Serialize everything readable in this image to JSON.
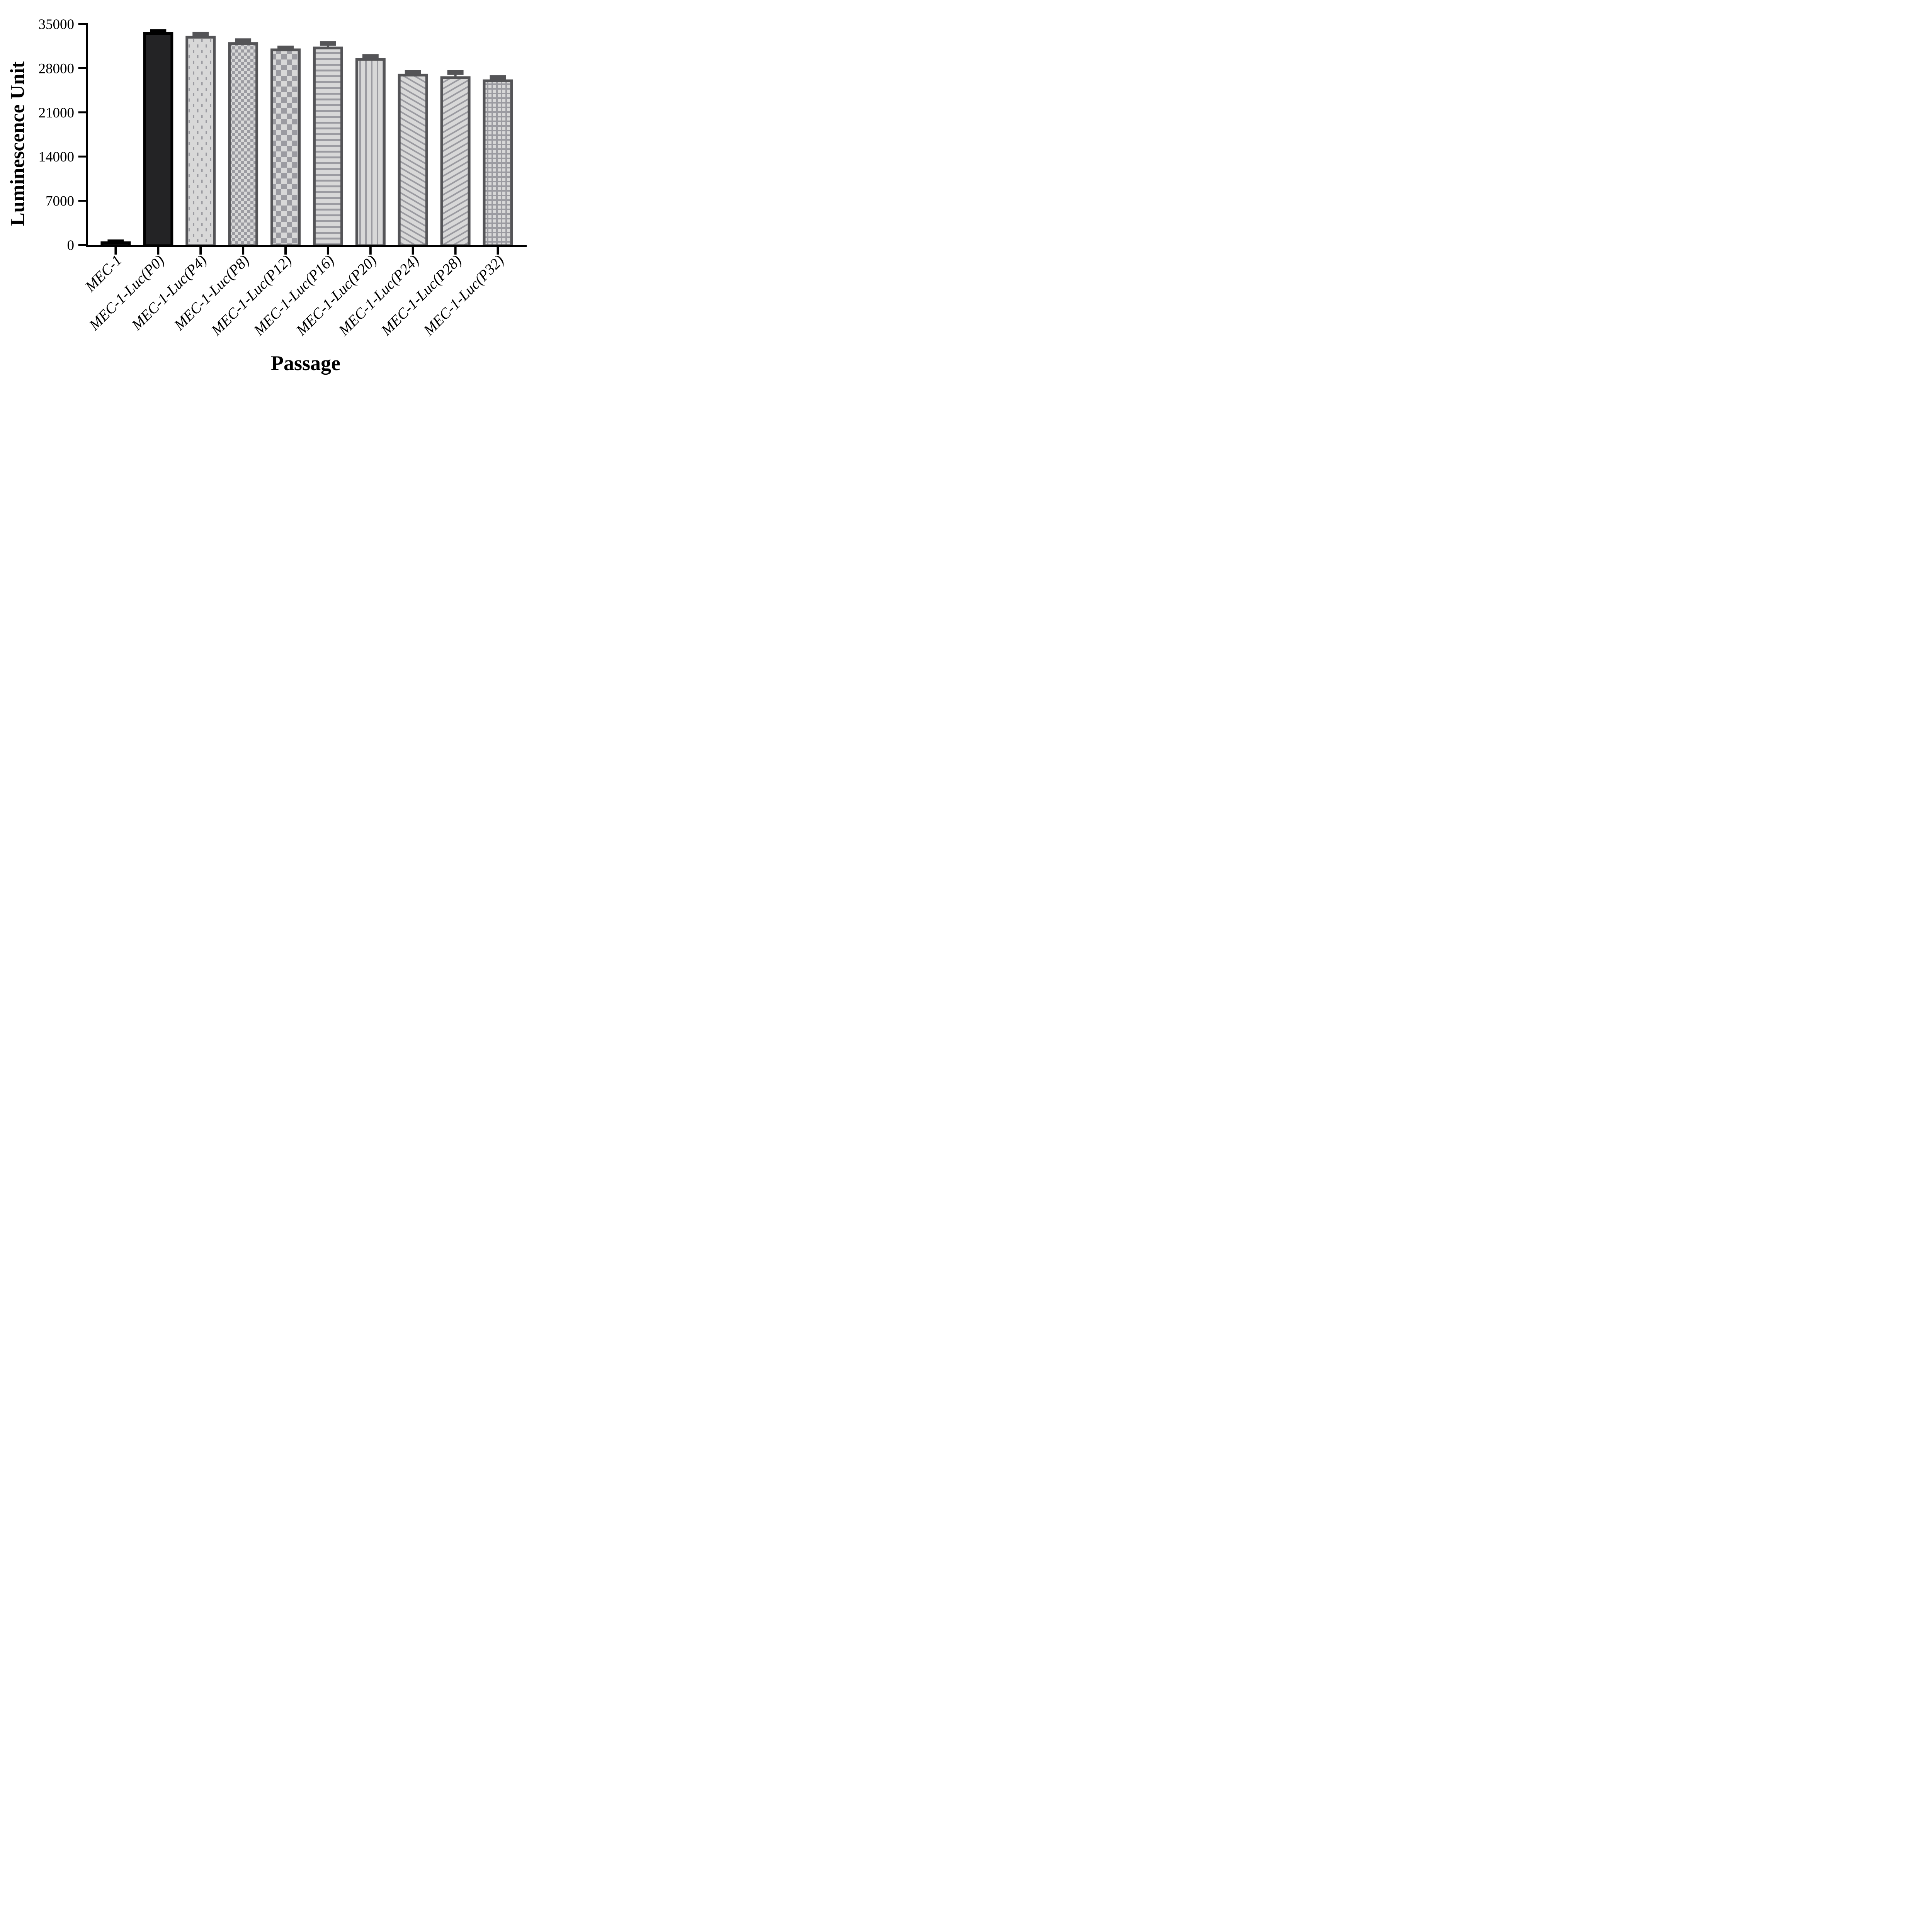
{
  "figure": {
    "background": "#ffffff"
  },
  "chart_data": {
    "type": "bar",
    "title": "",
    "xlabel": "Passage",
    "ylabel": "Luminescence Unit",
    "ylim": [
      0,
      35000
    ],
    "ytick_interval": 7000,
    "yticks": [
      0,
      7000,
      14000,
      21000,
      28000,
      35000
    ],
    "grid": false,
    "legend": "none",
    "error_bars": "sd, upper only, capped",
    "categories": [
      "MEC-1",
      "MEC-1-Luc(P0)",
      "MEC-1-Luc(P4)",
      "MEC-1-Luc(P8)",
      "MEC-1-Luc(P12)",
      "MEC-1-Luc(P16)",
      "MEC-1-Luc(P20)",
      "MEC-1-Luc(P24)",
      "MEC-1-Luc(P28)",
      "MEC-1-Luc(P32)"
    ],
    "series": [
      {
        "name": "Luminescence Unit",
        "values": [
          350,
          33500,
          32900,
          31900,
          30900,
          31200,
          29400,
          26900,
          26500,
          26000
        ],
        "errors": [
          150,
          300,
          500,
          450,
          300,
          700,
          450,
          450,
          800,
          500
        ]
      }
    ],
    "bar_patterns": [
      "solid-black",
      "solid-black",
      "dots",
      "checker-small",
      "checker-large",
      "horizontal-lines",
      "vertical-lines",
      "diagonal-up",
      "diagonal-down",
      "grid"
    ]
  },
  "colors": {
    "ink": "#000000",
    "solid_bar_fill": "#232325",
    "pattern_background": "#d8d8d8",
    "pattern_foreground": "#9b9ba1",
    "pattern_bar_border": "#545457"
  }
}
